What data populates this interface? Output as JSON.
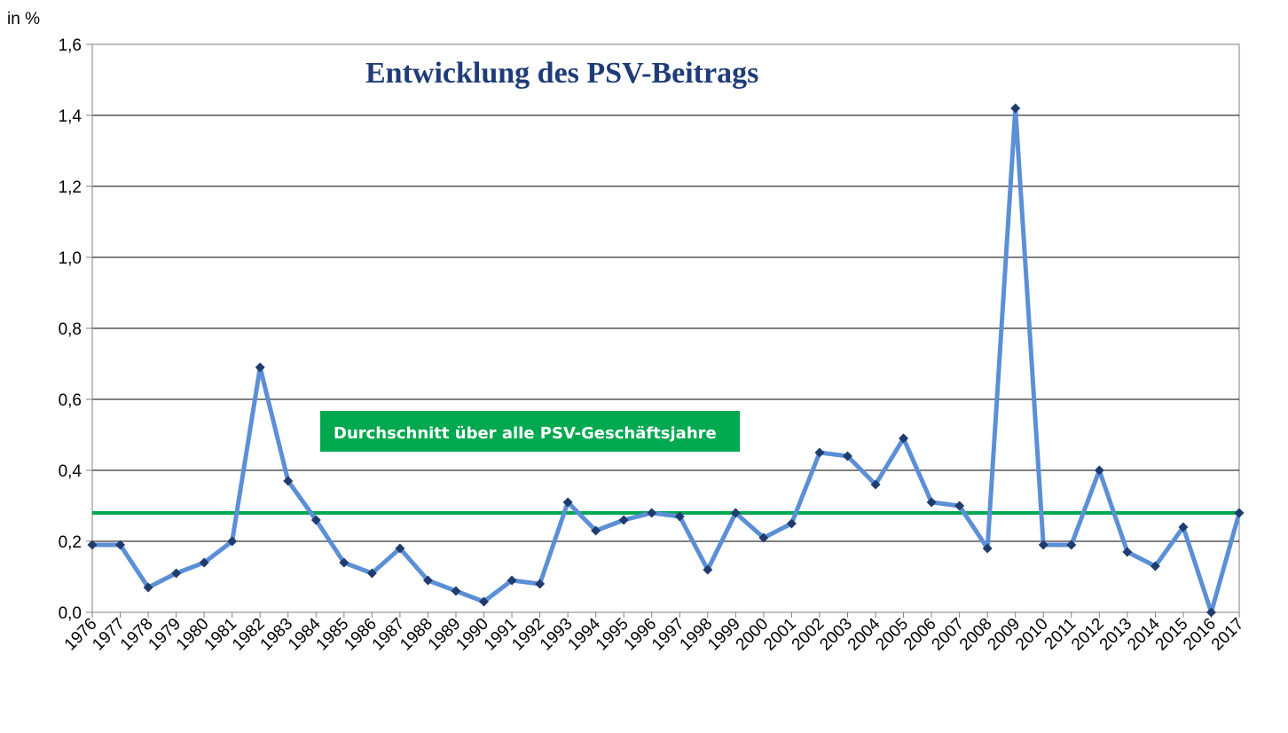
{
  "chart_data": {
    "type": "line",
    "title": "Entwicklung des PSV-Beitrags",
    "ylabel": "in %",
    "xlabel": "",
    "ylim": [
      0,
      1.6
    ],
    "yticks": [
      "0,0",
      "0,2",
      "0,4",
      "0,6",
      "0,8",
      "1,0",
      "1,2",
      "1,4",
      "1,6"
    ],
    "grid": true,
    "categories": [
      "1976",
      "1977",
      "1978",
      "1979",
      "1980",
      "1981",
      "1982",
      "1983",
      "1984",
      "1985",
      "1986",
      "1987",
      "1988",
      "1989",
      "1990",
      "1991",
      "1992",
      "1993",
      "1994",
      "1995",
      "1996",
      "1997",
      "1998",
      "1999",
      "2000",
      "2001",
      "2002",
      "2003",
      "2004",
      "2005",
      "2006",
      "2007",
      "2008",
      "2009",
      "2010",
      "2011",
      "2012",
      "2013",
      "2014",
      "2015",
      "2016",
      "2017"
    ],
    "series": [
      {
        "name": "",
        "color": "#5b8fd6",
        "marker_color": "#1f3c6e",
        "values": [
          0.19,
          0.19,
          0.07,
          0.11,
          0.14,
          0.2,
          0.69,
          0.37,
          0.26,
          0.14,
          0.11,
          0.18,
          0.09,
          0.06,
          0.03,
          0.09,
          0.08,
          0.31,
          0.23,
          0.26,
          0.28,
          0.27,
          0.12,
          0.28,
          0.21,
          0.25,
          0.45,
          0.44,
          0.36,
          0.49,
          0.31,
          0.3,
          0.18,
          1.42,
          0.19,
          0.19,
          0.4,
          0.17,
          0.13,
          0.24,
          0.0,
          0.28
        ]
      }
    ],
    "average": {
      "label": "Durchschnitt über alle PSV-Geschäftsjahre",
      "value": 0.28,
      "color": "#00a84f"
    }
  }
}
